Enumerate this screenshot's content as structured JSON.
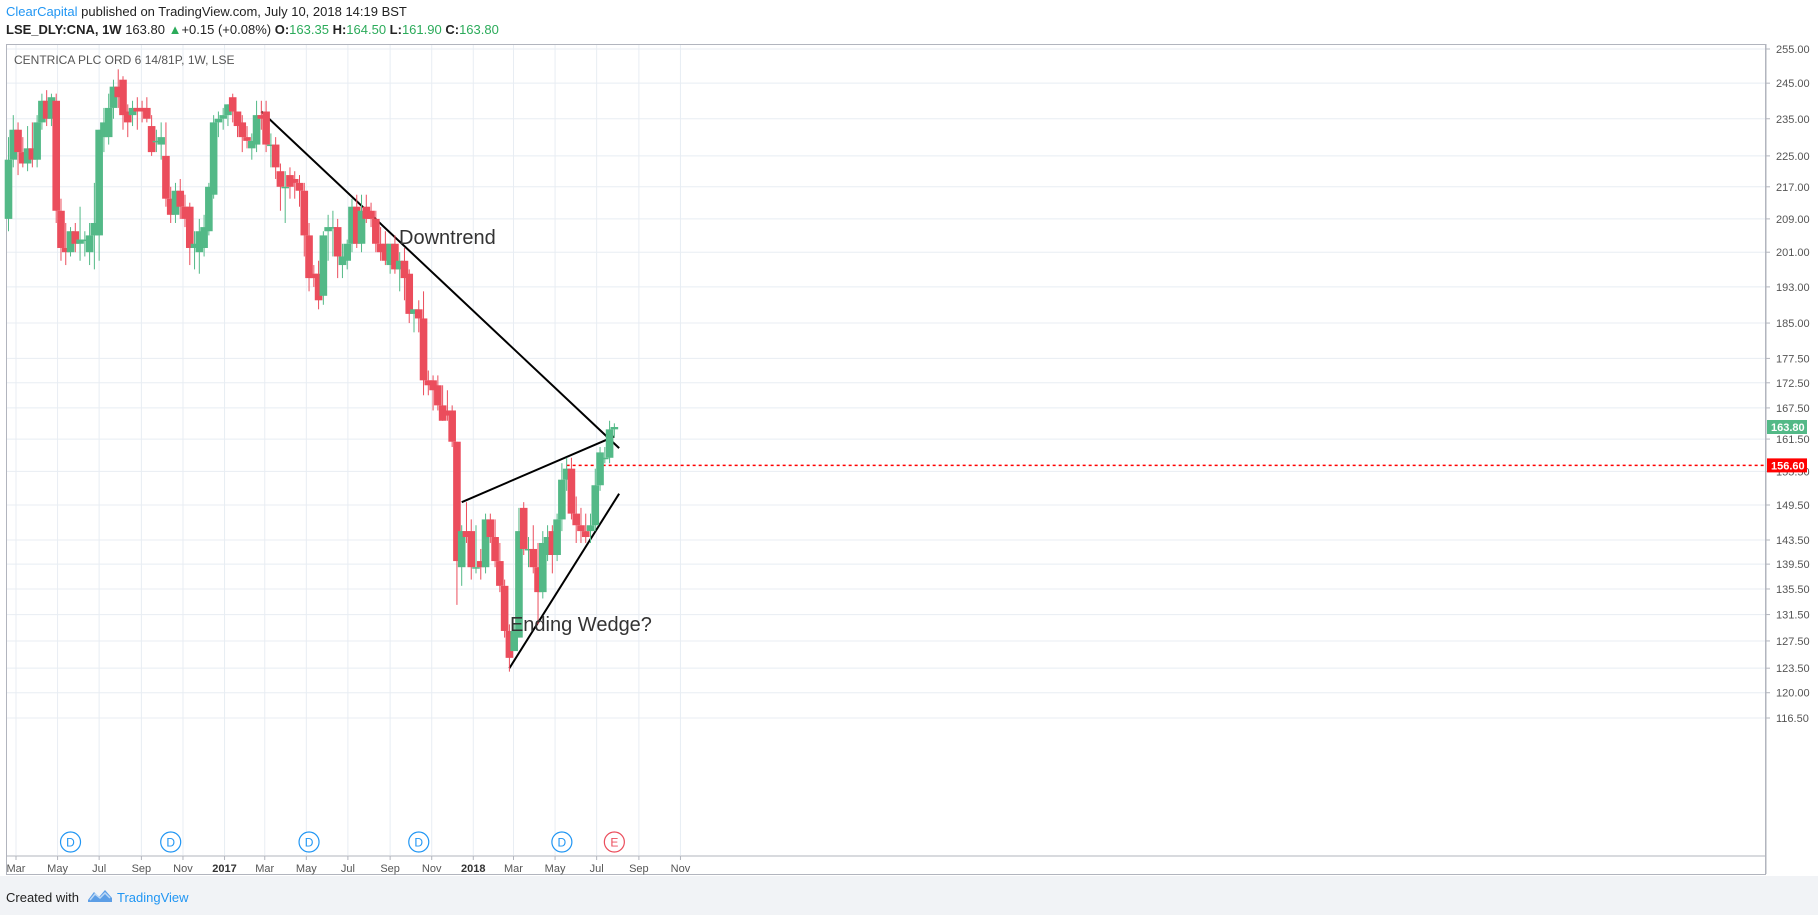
{
  "header": {
    "publisher": "ClearCapital",
    "published_text": "published on TradingView.com, July 10, 2018 14:19 BST",
    "symbol": "LSE_DLY:CNA, 1W",
    "last": "163.80",
    "change_arrow": "▲",
    "change": "+0.15 (+0.08%)",
    "o_label": "O:",
    "o_value": "163.35",
    "h_label": "H:",
    "h_value": "164.50",
    "l_label": "L:",
    "l_value": "161.90",
    "c_label": "C:",
    "c_value": "163.80"
  },
  "chart_title": "CENTRICA PLC ORD 6 14/81P, 1W, LSE",
  "footer": {
    "created_with": "Created with",
    "brand": "TradingView"
  },
  "colors": {
    "up": "#53b987",
    "down": "#eb4d5c",
    "grid": "#e8edf3",
    "axis_text": "#555555",
    "marker_blue": "#2196f3",
    "marker_red": "#eb4d5c",
    "line_red": "#ff0000"
  },
  "chart_data": {
    "type": "candlestick",
    "price_scale": "log",
    "y_ticks": [
      "255.00",
      "245.00",
      "235.00",
      "225.00",
      "217.00",
      "209.00",
      "201.00",
      "193.00",
      "185.00",
      "177.50",
      "172.50",
      "167.50",
      "161.50",
      "155.50",
      "149.50",
      "143.50",
      "139.50",
      "135.50",
      "131.50",
      "127.50",
      "123.50",
      "120.00",
      "116.50"
    ],
    "x_ticks": [
      "Mar",
      "May",
      "Jul",
      "Sep",
      "Nov",
      "2017",
      "Mar",
      "May",
      "Jul",
      "Sep",
      "Nov",
      "2018",
      "Mar",
      "May",
      "Jul",
      "Sep",
      "Nov"
    ],
    "x_tick_dates": [
      "2016-03-01",
      "2016-05-01",
      "2016-07-01",
      "2016-09-01",
      "2016-11-01",
      "2017-01-01",
      "2017-03-01",
      "2017-05-01",
      "2017-07-01",
      "2017-09-01",
      "2017-11-01",
      "2018-01-01",
      "2018-03-01",
      "2018-05-01",
      "2018-07-01",
      "2018-09-01",
      "2018-11-01"
    ],
    "candles": [
      {
        "date": "2016-02-19",
        "o": 209,
        "h": 230,
        "l": 206,
        "c": 224
      },
      {
        "date": "2016-02-26",
        "o": 224,
        "h": 236,
        "l": 222,
        "c": 232
      },
      {
        "date": "2016-03-04",
        "o": 232,
        "h": 234,
        "l": 220,
        "c": 226
      },
      {
        "date": "2016-03-11",
        "o": 226,
        "h": 230,
        "l": 222,
        "c": 223
      },
      {
        "date": "2016-03-18",
        "o": 223,
        "h": 233,
        "l": 221,
        "c": 227
      },
      {
        "date": "2016-03-25",
        "o": 227,
        "h": 234,
        "l": 222,
        "c": 224
      },
      {
        "date": "2016-04-01",
        "o": 224,
        "h": 236,
        "l": 222,
        "c": 234
      },
      {
        "date": "2016-04-08",
        "o": 234,
        "h": 242,
        "l": 232,
        "c": 240
      },
      {
        "date": "2016-04-15",
        "o": 240,
        "h": 243,
        "l": 233,
        "c": 235
      },
      {
        "date": "2016-04-22",
        "o": 235,
        "h": 242,
        "l": 233,
        "c": 241
      },
      {
        "date": "2016-04-29",
        "o": 240,
        "h": 242,
        "l": 208,
        "c": 211
      },
      {
        "date": "2016-05-06",
        "o": 211,
        "h": 214,
        "l": 199,
        "c": 202
      },
      {
        "date": "2016-05-13",
        "o": 202,
        "h": 208,
        "l": 198,
        "c": 201
      },
      {
        "date": "2016-05-20",
        "o": 201,
        "h": 207,
        "l": 200,
        "c": 206
      },
      {
        "date": "2016-05-27",
        "o": 206,
        "h": 208,
        "l": 201,
        "c": 203
      },
      {
        "date": "2016-06-03",
        "o": 203,
        "h": 212,
        "l": 199,
        "c": 204
      },
      {
        "date": "2016-06-10",
        "o": 204,
        "h": 206,
        "l": 200,
        "c": 204
      },
      {
        "date": "2016-06-17",
        "o": 201,
        "h": 208,
        "l": 198,
        "c": 205
      },
      {
        "date": "2016-06-24",
        "o": 205,
        "h": 218,
        "l": 197,
        "c": 208
      },
      {
        "date": "2016-07-01",
        "o": 205,
        "h": 232,
        "l": 199,
        "c": 232
      },
      {
        "date": "2016-07-08",
        "o": 230,
        "h": 238,
        "l": 226,
        "c": 234
      },
      {
        "date": "2016-07-15",
        "o": 230,
        "h": 242,
        "l": 228,
        "c": 238
      },
      {
        "date": "2016-07-22",
        "o": 238,
        "h": 246,
        "l": 235,
        "c": 244
      },
      {
        "date": "2016-07-29",
        "o": 244,
        "h": 249,
        "l": 238,
        "c": 241
      },
      {
        "date": "2016-08-05",
        "o": 246,
        "h": 247,
        "l": 232,
        "c": 236
      },
      {
        "date": "2016-08-12",
        "o": 237,
        "h": 239,
        "l": 230,
        "c": 234
      },
      {
        "date": "2016-08-19",
        "o": 236,
        "h": 240,
        "l": 233,
        "c": 238
      },
      {
        "date": "2016-08-26",
        "o": 238,
        "h": 241,
        "l": 232,
        "c": 237
      },
      {
        "date": "2016-09-02",
        "o": 238,
        "h": 240,
        "l": 234,
        "c": 237
      },
      {
        "date": "2016-09-09",
        "o": 238,
        "h": 241,
        "l": 234,
        "c": 235
      },
      {
        "date": "2016-09-16",
        "o": 233,
        "h": 236,
        "l": 225,
        "c": 226
      },
      {
        "date": "2016-09-23",
        "o": 229,
        "h": 232,
        "l": 226,
        "c": 229
      },
      {
        "date": "2016-09-30",
        "o": 228,
        "h": 234,
        "l": 224,
        "c": 230
      },
      {
        "date": "2016-10-07",
        "o": 225,
        "h": 234,
        "l": 212,
        "c": 214
      },
      {
        "date": "2016-10-14",
        "o": 214,
        "h": 217,
        "l": 208,
        "c": 210
      },
      {
        "date": "2016-10-21",
        "o": 210,
        "h": 218,
        "l": 208,
        "c": 216
      },
      {
        "date": "2016-10-28",
        "o": 216,
        "h": 219,
        "l": 209,
        "c": 212
      },
      {
        "date": "2016-11-04",
        "o": 212,
        "h": 215,
        "l": 207,
        "c": 209
      },
      {
        "date": "2016-11-11",
        "o": 212,
        "h": 213,
        "l": 198,
        "c": 202
      },
      {
        "date": "2016-11-18",
        "o": 202,
        "h": 206,
        "l": 197,
        "c": 203
      },
      {
        "date": "2016-11-25",
        "o": 201,
        "h": 209,
        "l": 196,
        "c": 206
      },
      {
        "date": "2016-12-02",
        "o": 202,
        "h": 210,
        "l": 200,
        "c": 207
      },
      {
        "date": "2016-12-09",
        "o": 206,
        "h": 218,
        "l": 205,
        "c": 217
      },
      {
        "date": "2016-12-16",
        "o": 215,
        "h": 236,
        "l": 214,
        "c": 234
      },
      {
        "date": "2016-12-23",
        "o": 234,
        "h": 237,
        "l": 230,
        "c": 235
      },
      {
        "date": "2016-12-30",
        "o": 235,
        "h": 238,
        "l": 232,
        "c": 236
      },
      {
        "date": "2017-01-06",
        "o": 236,
        "h": 239,
        "l": 233,
        "c": 239
      },
      {
        "date": "2017-01-13",
        "o": 241,
        "h": 242,
        "l": 234,
        "c": 237
      },
      {
        "date": "2017-01-20",
        "o": 237,
        "h": 237,
        "l": 230,
        "c": 233
      },
      {
        "date": "2017-01-27",
        "o": 234,
        "h": 236,
        "l": 226,
        "c": 230
      },
      {
        "date": "2017-02-03",
        "o": 230,
        "h": 233,
        "l": 227,
        "c": 229
      },
      {
        "date": "2017-02-10",
        "o": 227,
        "h": 231,
        "l": 224,
        "c": 229
      },
      {
        "date": "2017-02-17",
        "o": 228,
        "h": 240,
        "l": 226,
        "c": 236
      },
      {
        "date": "2017-02-24",
        "o": 236,
        "h": 240,
        "l": 232,
        "c": 235
      },
      {
        "date": "2017-03-03",
        "o": 237,
        "h": 240,
        "l": 226,
        "c": 228
      },
      {
        "date": "2017-03-10",
        "o": 228,
        "h": 231,
        "l": 222,
        "c": 228
      },
      {
        "date": "2017-03-17",
        "o": 228,
        "h": 230,
        "l": 219,
        "c": 222
      },
      {
        "date": "2017-03-24",
        "o": 221,
        "h": 223,
        "l": 211,
        "c": 217
      },
      {
        "date": "2017-03-31",
        "o": 217,
        "h": 221,
        "l": 208,
        "c": 217
      },
      {
        "date": "2017-04-07",
        "o": 220,
        "h": 222,
        "l": 214,
        "c": 217
      },
      {
        "date": "2017-04-14",
        "o": 219,
        "h": 221,
        "l": 214,
        "c": 218
      },
      {
        "date": "2017-04-21",
        "o": 218,
        "h": 220,
        "l": 212,
        "c": 216
      },
      {
        "date": "2017-04-28",
        "o": 216,
        "h": 218,
        "l": 200,
        "c": 205
      },
      {
        "date": "2017-05-05",
        "o": 205,
        "h": 208,
        "l": 192,
        "c": 195
      },
      {
        "date": "2017-05-12",
        "o": 196,
        "h": 198,
        "l": 193,
        "c": 195
      },
      {
        "date": "2017-05-19",
        "o": 196,
        "h": 199,
        "l": 188,
        "c": 190
      },
      {
        "date": "2017-05-26",
        "o": 191,
        "h": 206,
        "l": 189,
        "c": 205
      },
      {
        "date": "2017-06-02",
        "o": 206,
        "h": 210,
        "l": 199,
        "c": 207
      },
      {
        "date": "2017-06-09",
        "o": 207,
        "h": 211,
        "l": 200,
        "c": 207
      },
      {
        "date": "2017-06-16",
        "o": 207,
        "h": 209,
        "l": 195,
        "c": 200
      },
      {
        "date": "2017-06-23",
        "o": 198,
        "h": 203,
        "l": 195,
        "c": 200
      },
      {
        "date": "2017-06-30",
        "o": 199,
        "h": 204,
        "l": 197,
        "c": 203
      },
      {
        "date": "2017-07-07",
        "o": 203,
        "h": 214,
        "l": 201,
        "c": 212
      },
      {
        "date": "2017-07-14",
        "o": 212,
        "h": 215,
        "l": 202,
        "c": 203
      },
      {
        "date": "2017-07-21",
        "o": 203,
        "h": 215,
        "l": 201,
        "c": 211
      },
      {
        "date": "2017-07-28",
        "o": 212,
        "h": 215,
        "l": 208,
        "c": 209
      },
      {
        "date": "2017-08-04",
        "o": 211,
        "h": 213,
        "l": 207,
        "c": 209
      },
      {
        "date": "2017-08-11",
        "o": 209,
        "h": 211,
        "l": 201,
        "c": 203
      },
      {
        "date": "2017-08-18",
        "o": 203,
        "h": 207,
        "l": 199,
        "c": 201
      },
      {
        "date": "2017-08-25",
        "o": 203,
        "h": 206,
        "l": 198,
        "c": 199
      },
      {
        "date": "2017-09-01",
        "o": 198,
        "h": 203,
        "l": 196,
        "c": 203
      },
      {
        "date": "2017-09-08",
        "o": 203,
        "h": 205,
        "l": 196,
        "c": 197
      },
      {
        "date": "2017-09-15",
        "o": 197,
        "h": 201,
        "l": 192,
        "c": 199
      },
      {
        "date": "2017-09-22",
        "o": 199,
        "h": 202,
        "l": 190,
        "c": 195
      },
      {
        "date": "2017-09-29",
        "o": 196,
        "h": 197,
        "l": 185,
        "c": 187
      },
      {
        "date": "2017-10-06",
        "o": 187,
        "h": 188,
        "l": 183,
        "c": 188
      },
      {
        "date": "2017-10-13",
        "o": 188,
        "h": 190,
        "l": 183,
        "c": 186
      },
      {
        "date": "2017-10-20",
        "o": 186,
        "h": 192,
        "l": 170,
        "c": 173
      },
      {
        "date": "2017-10-27",
        "o": 173,
        "h": 175,
        "l": 170,
        "c": 172
      },
      {
        "date": "2017-11-03",
        "o": 173,
        "h": 174,
        "l": 167,
        "c": 171
      },
      {
        "date": "2017-11-10",
        "o": 172,
        "h": 174,
        "l": 167,
        "c": 168
      },
      {
        "date": "2017-11-17",
        "o": 168,
        "h": 172,
        "l": 165,
        "c": 165
      },
      {
        "date": "2017-11-24",
        "o": 167,
        "h": 171,
        "l": 165,
        "c": 166
      },
      {
        "date": "2017-12-01",
        "o": 167,
        "h": 168,
        "l": 160,
        "c": 161
      },
      {
        "date": "2017-12-08",
        "o": 161,
        "h": 161,
        "l": 133,
        "c": 140
      },
      {
        "date": "2017-12-15",
        "o": 139,
        "h": 146,
        "l": 136,
        "c": 145
      },
      {
        "date": "2017-12-22",
        "o": 145,
        "h": 150,
        "l": 143,
        "c": 144
      },
      {
        "date": "2017-12-29",
        "o": 145,
        "h": 147,
        "l": 137,
        "c": 139
      },
      {
        "date": "2018-01-05",
        "o": 139,
        "h": 146,
        "l": 138,
        "c": 139
      },
      {
        "date": "2018-01-12",
        "o": 140,
        "h": 142,
        "l": 137,
        "c": 139
      },
      {
        "date": "2018-01-19",
        "o": 139,
        "h": 148,
        "l": 138,
        "c": 147
      },
      {
        "date": "2018-01-26",
        "o": 147,
        "h": 148,
        "l": 143,
        "c": 144
      },
      {
        "date": "2018-02-02",
        "o": 144,
        "h": 147,
        "l": 139,
        "c": 140
      },
      {
        "date": "2018-02-09",
        "o": 140,
        "h": 143,
        "l": 135,
        "c": 136
      },
      {
        "date": "2018-02-16",
        "o": 136,
        "h": 137,
        "l": 128,
        "c": 129
      },
      {
        "date": "2018-02-23",
        "o": 129,
        "h": 130,
        "l": 123,
        "c": 125
      },
      {
        "date": "2018-03-02",
        "o": 126,
        "h": 130,
        "l": 126,
        "c": 129
      },
      {
        "date": "2018-03-09",
        "o": 128,
        "h": 149,
        "l": 128,
        "c": 145
      },
      {
        "date": "2018-03-16",
        "o": 149,
        "h": 150,
        "l": 141,
        "c": 142
      },
      {
        "date": "2018-03-23",
        "o": 142,
        "h": 144,
        "l": 139,
        "c": 142
      },
      {
        "date": "2018-03-30",
        "o": 142,
        "h": 146,
        "l": 138,
        "c": 139
      },
      {
        "date": "2018-04-06",
        "o": 139,
        "h": 143,
        "l": 130,
        "c": 135
      },
      {
        "date": "2018-04-13",
        "o": 135,
        "h": 145,
        "l": 134,
        "c": 143
      },
      {
        "date": "2018-04-20",
        "o": 141,
        "h": 146,
        "l": 140,
        "c": 144
      },
      {
        "date": "2018-04-27",
        "o": 145,
        "h": 146,
        "l": 138,
        "c": 141
      },
      {
        "date": "2018-05-04",
        "o": 141,
        "h": 148,
        "l": 140,
        "c": 147
      },
      {
        "date": "2018-05-11",
        "o": 147,
        "h": 157,
        "l": 145,
        "c": 154
      },
      {
        "date": "2018-05-18",
        "o": 154,
        "h": 158,
        "l": 152,
        "c": 156
      },
      {
        "date": "2018-05-25",
        "o": 156,
        "h": 158,
        "l": 147,
        "c": 148
      },
      {
        "date": "2018-06-01",
        "o": 148,
        "h": 151,
        "l": 143,
        "c": 146
      },
      {
        "date": "2018-06-08",
        "o": 146,
        "h": 149,
        "l": 143,
        "c": 145
      },
      {
        "date": "2018-06-15",
        "o": 145,
        "h": 148,
        "l": 143,
        "c": 144
      },
      {
        "date": "2018-06-22",
        "o": 145,
        "h": 148,
        "l": 143,
        "c": 146
      },
      {
        "date": "2018-06-29",
        "o": 146,
        "h": 156,
        "l": 145,
        "c": 153
      },
      {
        "date": "2018-07-06",
        "o": 153,
        "h": 160,
        "l": 152,
        "c": 159
      },
      {
        "date": "2018-07-13",
        "o": 158,
        "h": 160,
        "l": 157,
        "c": 158
      },
      {
        "date": "2018-07-20",
        "o": 158,
        "h": 165,
        "l": 157,
        "c": 163.35
      },
      {
        "date": "2018-07-27",
        "o": 163.35,
        "h": 164.5,
        "l": 161.9,
        "c": 163.8
      }
    ],
    "trendlines": [
      {
        "name": "downtrend",
        "from": {
          "date": "2017-02-24",
          "price": 237
        },
        "to": {
          "date": "2018-08-03",
          "price": 159.8
        }
      },
      {
        "name": "wedge-upper",
        "from": {
          "date": "2017-12-15",
          "price": 150
        },
        "to": {
          "date": "2018-07-27",
          "price": 162
        }
      },
      {
        "name": "wedge-lower",
        "from": {
          "date": "2018-02-23",
          "price": 123.5
        },
        "to": {
          "date": "2018-08-03",
          "price": 151.5
        }
      }
    ],
    "horizontal_line": {
      "price": 156.6,
      "label": "156.60",
      "from_date": "2018-05-18"
    },
    "last_price_label": "163.80",
    "annotations": [
      {
        "text": "Downtrend",
        "date": "2017-11-24",
        "price": 203
      },
      {
        "text": "Ending Wedge?",
        "date": "2018-06-08",
        "price": 129
      }
    ],
    "event_markers": [
      {
        "letter": "D",
        "date": "2016-05-20",
        "kind": "dividend"
      },
      {
        "letter": "D",
        "date": "2016-10-14",
        "kind": "dividend"
      },
      {
        "letter": "D",
        "date": "2017-05-05",
        "kind": "dividend"
      },
      {
        "letter": "D",
        "date": "2017-10-13",
        "kind": "dividend"
      },
      {
        "letter": "D",
        "date": "2018-05-11",
        "kind": "dividend"
      },
      {
        "letter": "E",
        "date": "2018-07-27",
        "kind": "earnings"
      }
    ]
  }
}
